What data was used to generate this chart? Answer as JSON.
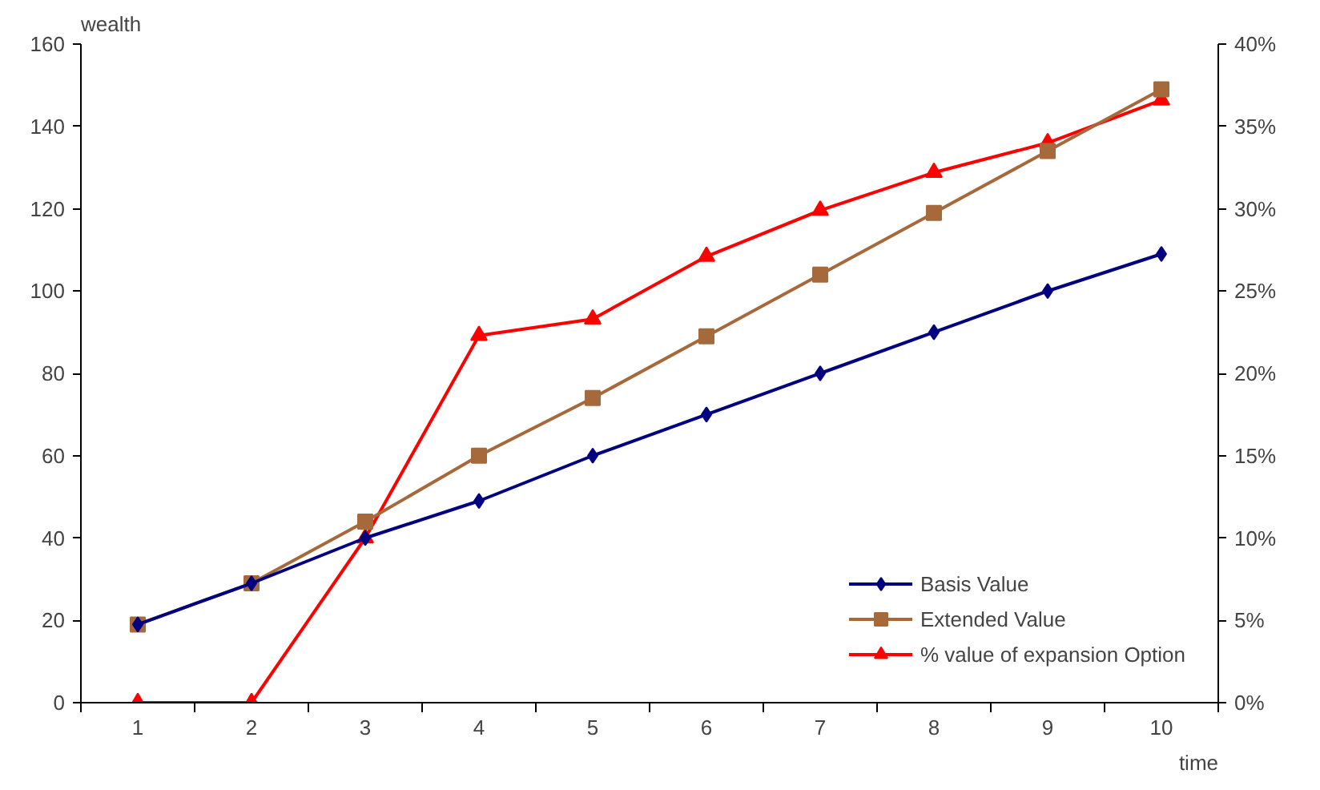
{
  "chart_data": {
    "type": "line",
    "xlabel": "time",
    "ylabel": "wealth",
    "categories": [
      "1",
      "2",
      "3",
      "4",
      "5",
      "6",
      "7",
      "8",
      "9",
      "10"
    ],
    "ylim": [
      0,
      160
    ],
    "yticks": [
      0,
      20,
      40,
      60,
      80,
      100,
      120,
      140,
      160
    ],
    "y2lim": [
      0,
      40
    ],
    "y2ticks": [
      {
        "value": 0,
        "label": "0%"
      },
      {
        "value": 5,
        "label": "5%"
      },
      {
        "value": 10,
        "label": "10%"
      },
      {
        "value": 15,
        "label": "15%"
      },
      {
        "value": 20,
        "label": "20%"
      },
      {
        "value": 25,
        "label": "25%"
      },
      {
        "value": 30,
        "label": "30%"
      },
      {
        "value": 35,
        "label": "35%"
      },
      {
        "value": 40,
        "label": "40%"
      }
    ],
    "series": [
      {
        "name": "Basis Value",
        "color": "#000080",
        "marker": "diamond",
        "values": [
          19,
          29,
          40,
          49,
          60,
          70,
          80,
          90,
          100,
          109
        ]
      },
      {
        "name": "Extended Value",
        "color": "#a5693c",
        "marker": "square",
        "values": [
          19,
          29,
          44,
          60,
          74,
          89,
          104,
          119,
          134,
          149
        ]
      },
      {
        "name": "% value of expansion Option",
        "color": "#ff0000",
        "marker": "triangle",
        "axis": "y2",
        "values": [
          0,
          0,
          10,
          22.3,
          23.3,
          27.1,
          29.9,
          32.2,
          34,
          36.6
        ]
      }
    ],
    "legend": "bottom right",
    "grid": false
  }
}
